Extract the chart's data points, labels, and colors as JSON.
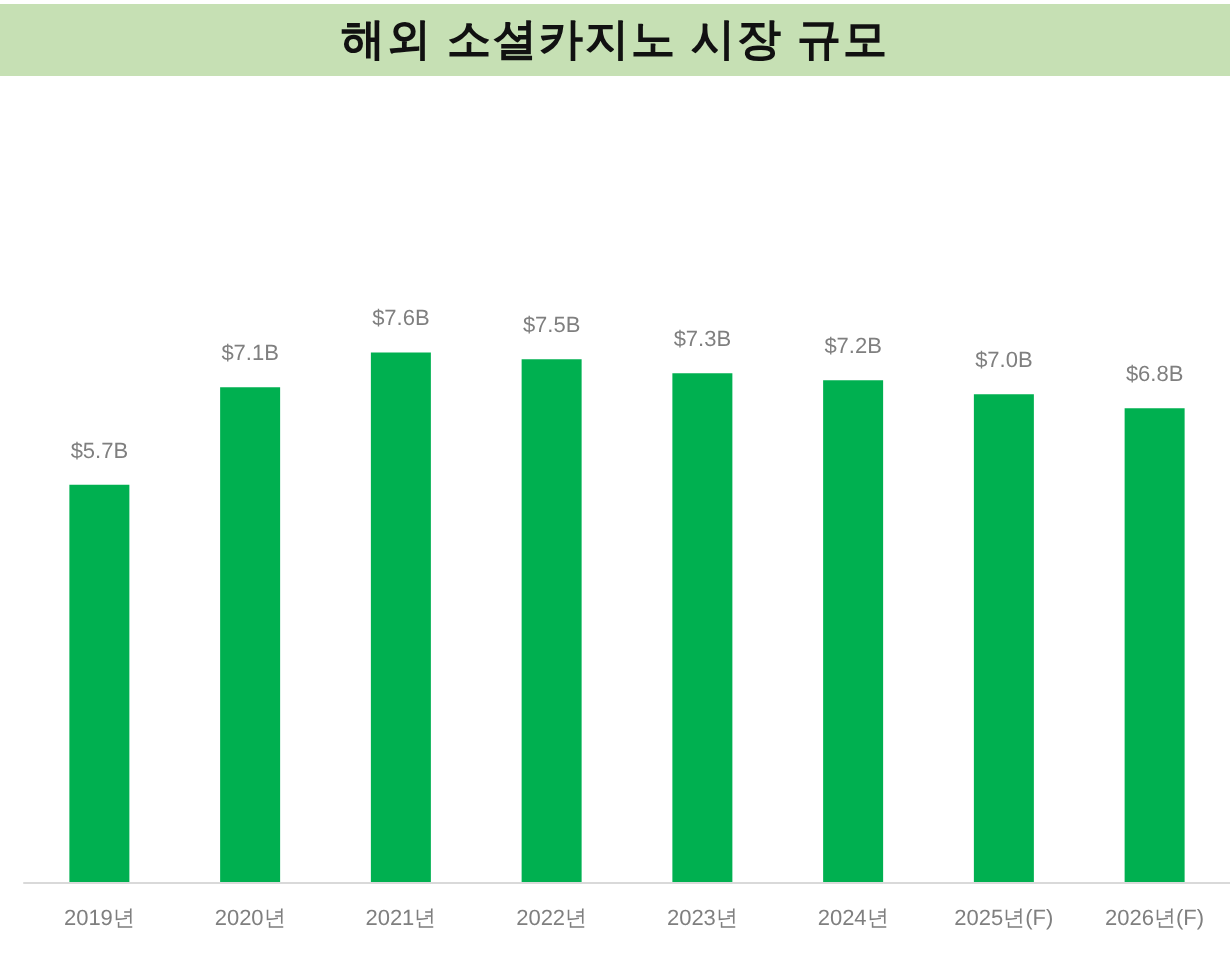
{
  "chart_data": {
    "type": "bar",
    "title": "해외 소셜카지노 시장 규모",
    "categories": [
      "2019년",
      "2020년",
      "2021년",
      "2022년",
      "2023년",
      "2024년",
      "2025년(F)",
      "2026년(F)"
    ],
    "values": [
      5.7,
      7.1,
      7.6,
      7.5,
      7.3,
      7.2,
      7.0,
      6.8
    ],
    "value_labels": [
      "$5.7B",
      "$7.1B",
      "$7.6B",
      "$7.5B",
      "$7.3B",
      "$7.2B",
      "$7.0B",
      "$6.8B"
    ],
    "color": "#00b050",
    "tick_labels": "x"
  }
}
